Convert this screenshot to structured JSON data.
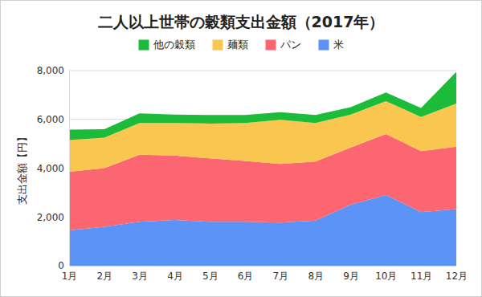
{
  "chart_data": {
    "type": "area",
    "stacked": true,
    "title": "二人以上世帯の穀類支出金額（2017年）",
    "y_label": "支出金額【円】",
    "categories": [
      "1月",
      "2月",
      "3月",
      "4月",
      "5月",
      "6月",
      "7月",
      "8月",
      "9月",
      "10月",
      "11月",
      "12月"
    ],
    "series": [
      {
        "name": "米",
        "color": "#5b93f7",
        "values": [
          1450,
          1600,
          1800,
          1880,
          1800,
          1800,
          1770,
          1850,
          2500,
          2900,
          2200,
          2320
        ]
      },
      {
        "name": "パン",
        "color": "#fb6670",
        "values": [
          2400,
          2400,
          2750,
          2640,
          2600,
          2500,
          2400,
          2420,
          2350,
          2500,
          2500,
          2560
        ]
      },
      {
        "name": "麺類",
        "color": "#f9c74f",
        "values": [
          1300,
          1250,
          1300,
          1330,
          1430,
          1550,
          1810,
          1580,
          1350,
          1350,
          1400,
          1770
        ]
      },
      {
        "name": "他の穀類",
        "color": "#1dbb3a",
        "values": [
          430,
          350,
          400,
          350,
          350,
          330,
          320,
          330,
          300,
          350,
          370,
          1300
        ]
      }
    ],
    "ylim": [
      0,
      8000
    ],
    "yticks": [
      0,
      {
        "value": 2000,
        "label": "2,000"
      },
      {
        "value": 4000,
        "label": "4,000"
      },
      {
        "value": 6000,
        "label": "6,000"
      },
      {
        "value": 8000,
        "label": "8,000"
      }
    ],
    "grid": true,
    "legend": "top"
  }
}
